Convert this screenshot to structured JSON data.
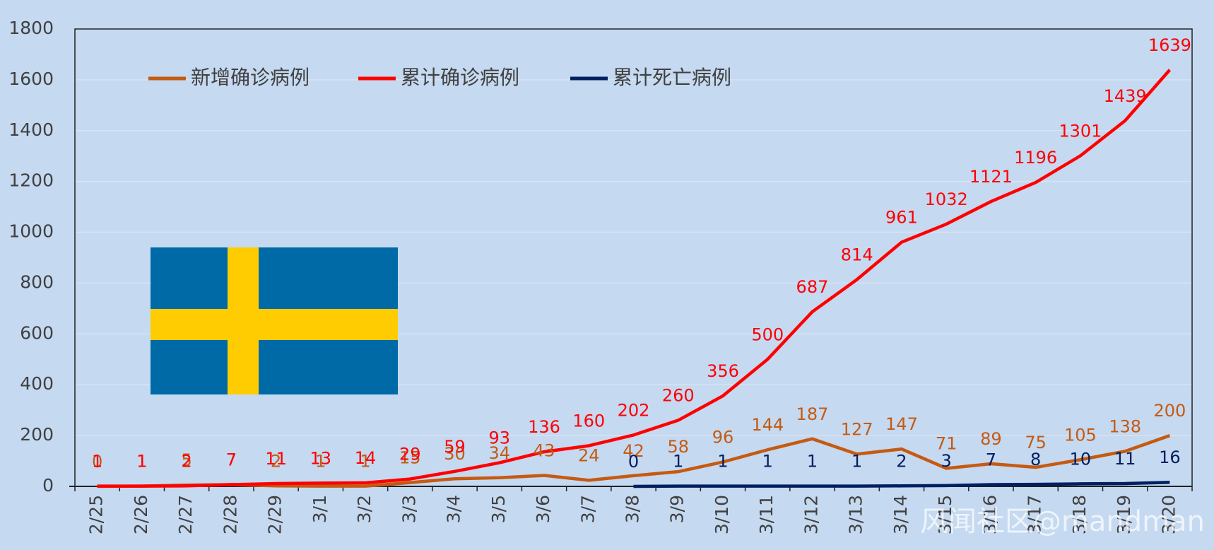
{
  "chart_data": {
    "type": "line",
    "categories": [
      "2/25",
      "2/26",
      "2/27",
      "2/28",
      "2/29",
      "3/1",
      "3/2",
      "3/3",
      "3/4",
      "3/5",
      "3/6",
      "3/7",
      "3/8",
      "3/9",
      "3/10",
      "3/11",
      "3/12",
      "3/13",
      "3/14",
      "3/15",
      "3/16",
      "3/17",
      "3/18",
      "3/19",
      "3/20"
    ],
    "series": [
      {
        "name": "新增确诊病例",
        "color": "#c55a11",
        "values": [
          0,
          1,
          5,
          7,
          2,
          1,
          1,
          15,
          30,
          34,
          43,
          24,
          42,
          58,
          96,
          144,
          187,
          127,
          147,
          71,
          89,
          75,
          105,
          138,
          200
        ]
      },
      {
        "name": "累计确诊病例",
        "color": "#ff0000",
        "values": [
          1,
          1,
          2,
          7,
          11,
          13,
          14,
          29,
          59,
          93,
          136,
          160,
          202,
          260,
          356,
          500,
          687,
          814,
          961,
          1032,
          1121,
          1196,
          1301,
          1439,
          1639
        ]
      },
      {
        "name": "累计死亡病例",
        "color": "#002060",
        "values": [
          null,
          null,
          null,
          null,
          null,
          null,
          null,
          null,
          null,
          null,
          null,
          null,
          0,
          1,
          1,
          1,
          1,
          1,
          2,
          3,
          7,
          8,
          10,
          11,
          16
        ]
      }
    ],
    "ylim": [
      0,
      1800
    ],
    "yticks": [
      0,
      200,
      400,
      600,
      800,
      1000,
      1200,
      1400,
      1600,
      1800
    ],
    "grid": true,
    "legend": "top-left",
    "watermark": "风闻社区@mandman"
  }
}
